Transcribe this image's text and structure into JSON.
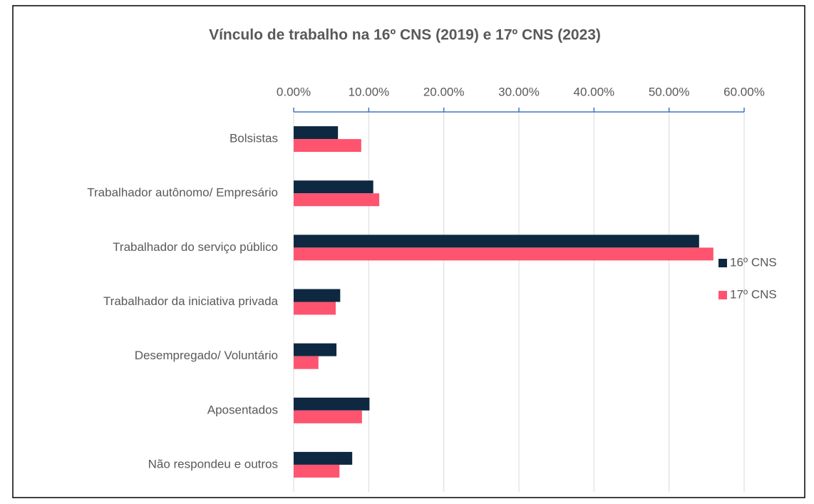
{
  "chart_data": {
    "type": "hbar",
    "title": "Vínculo de trabalho na 16º CNS (2019) e 17º CNS (2023)",
    "categories": [
      "Bolsistas",
      "Trabalhador autônomo/ Empresário",
      "Trabalhador do serviço público",
      "Trabalhador da iniciativa privada",
      "Desempregado/ Voluntário",
      "Aposentados",
      "Não respondeu e outros"
    ],
    "series": [
      {
        "name": "16º CNS",
        "color": "#0e2841",
        "values": [
          5.9,
          10.6,
          54.0,
          6.2,
          5.7,
          10.1,
          7.8
        ]
      },
      {
        "name": "17º CNS",
        "color": "#fe5470",
        "values": [
          9.0,
          11.4,
          55.9,
          5.6,
          3.3,
          9.1,
          6.1
        ]
      }
    ],
    "xlim": [
      0,
      60
    ],
    "xticks": [
      {
        "value": 0,
        "label": "0.00%"
      },
      {
        "value": 10,
        "label": "10.00%"
      },
      {
        "value": 20,
        "label": "20.00%"
      },
      {
        "value": 30,
        "label": "30.00%"
      },
      {
        "value": 40,
        "label": "40.00%"
      },
      {
        "value": 50,
        "label": "50.00%"
      },
      {
        "value": 60,
        "label": "60.00%"
      }
    ],
    "grid": true,
    "legend": "right"
  }
}
